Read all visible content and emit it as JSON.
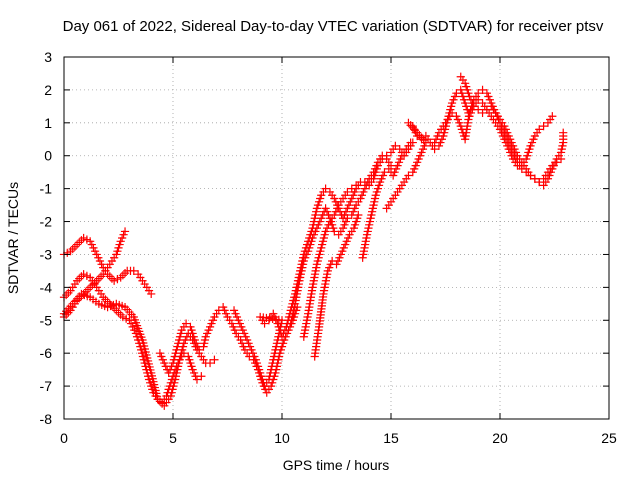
{
  "chart_data": {
    "type": "scatter",
    "title": "Day 061 of 2022, Sidereal Day-to-day VTEC variation (SDTVAR) for receiver ptsv",
    "xlabel": "GPS time / hours",
    "ylabel": "SDTVAR / TECUs",
    "xlim": [
      0,
      25
    ],
    "ylim": [
      -8,
      3
    ],
    "xticks": [
      "0",
      "5",
      "10",
      "15",
      "20",
      "25"
    ],
    "yticks": [
      "-8",
      "-7",
      "-6",
      "-5",
      "-4",
      "-3",
      "-2",
      "-1",
      "0",
      "1",
      "2",
      "3"
    ],
    "grid": true,
    "marker": "plus",
    "color": "#ff0000",
    "series": [
      {
        "points": [
          [
            0.0,
            -3.0
          ],
          [
            0.3,
            -2.9
          ],
          [
            0.6,
            -2.7
          ],
          [
            0.9,
            -2.5
          ],
          [
            1.2,
            -2.6
          ],
          [
            1.5,
            -3.0
          ],
          [
            1.8,
            -3.4
          ],
          [
            2.0,
            -3.6
          ],
          [
            2.3,
            -3.8
          ],
          [
            2.6,
            -3.7
          ],
          [
            2.9,
            -3.5
          ],
          [
            3.2,
            -3.5
          ],
          [
            3.4,
            -3.6
          ],
          [
            3.6,
            -3.8
          ],
          [
            3.8,
            -4.0
          ],
          [
            4.0,
            -4.2
          ],
          [
            0.0,
            -4.3
          ],
          [
            0.3,
            -4.1
          ],
          [
            0.6,
            -3.8
          ],
          [
            0.9,
            -3.6
          ],
          [
            1.2,
            -3.7
          ],
          [
            1.5,
            -4.0
          ],
          [
            1.8,
            -4.3
          ],
          [
            2.1,
            -4.5
          ],
          [
            2.4,
            -4.7
          ],
          [
            2.7,
            -4.9
          ],
          [
            3.0,
            -5.0
          ],
          [
            3.3,
            -5.4
          ],
          [
            3.5,
            -5.8
          ],
          [
            3.7,
            -6.3
          ],
          [
            3.9,
            -6.8
          ],
          [
            4.1,
            -7.2
          ],
          [
            4.3,
            -7.4
          ],
          [
            4.5,
            -7.5
          ],
          [
            4.7,
            -7.3
          ],
          [
            4.9,
            -6.9
          ],
          [
            5.1,
            -6.5
          ],
          [
            5.3,
            -6.2
          ],
          [
            5.5,
            -6.0
          ],
          [
            5.7,
            -6.1
          ],
          [
            5.9,
            -6.5
          ],
          [
            6.1,
            -6.8
          ],
          [
            6.3,
            -6.7
          ],
          [
            0.0,
            -4.9
          ],
          [
            0.3,
            -4.7
          ],
          [
            0.6,
            -4.4
          ],
          [
            0.9,
            -4.2
          ],
          [
            1.2,
            -4.0
          ],
          [
            1.5,
            -3.8
          ],
          [
            1.8,
            -3.6
          ],
          [
            2.1,
            -3.3
          ],
          [
            2.4,
            -3.0
          ],
          [
            2.6,
            -2.6
          ],
          [
            2.8,
            -2.3
          ],
          [
            0.0,
            -4.8
          ],
          [
            0.4,
            -4.5
          ],
          [
            0.8,
            -4.2
          ],
          [
            1.2,
            -4.3
          ],
          [
            1.6,
            -4.5
          ],
          [
            2.0,
            -4.6
          ],
          [
            2.4,
            -4.5
          ],
          [
            2.8,
            -4.6
          ],
          [
            3.2,
            -4.9
          ],
          [
            3.6,
            -5.6
          ],
          [
            4.0,
            -6.6
          ],
          [
            4.3,
            -7.4
          ],
          [
            4.6,
            -7.6
          ],
          [
            4.9,
            -7.3
          ],
          [
            5.1,
            -6.8
          ],
          [
            5.3,
            -6.2
          ],
          [
            5.5,
            -5.7
          ],
          [
            5.7,
            -5.4
          ],
          [
            5.9,
            -5.6
          ],
          [
            6.1,
            -5.9
          ],
          [
            6.3,
            -6.1
          ],
          [
            6.5,
            -6.3
          ],
          [
            6.7,
            -6.3
          ],
          [
            6.9,
            -6.2
          ],
          [
            4.4,
            -6.0
          ],
          [
            4.6,
            -6.3
          ],
          [
            4.8,
            -6.6
          ],
          [
            5.0,
            -6.3
          ],
          [
            5.2,
            -5.8
          ],
          [
            5.4,
            -5.3
          ],
          [
            5.6,
            -5.1
          ],
          [
            5.8,
            -5.2
          ],
          [
            6.0,
            -5.6
          ],
          [
            6.2,
            -5.9
          ],
          [
            6.4,
            -5.8
          ],
          [
            6.5,
            -5.5
          ],
          [
            6.7,
            -5.2
          ],
          [
            6.9,
            -4.9
          ],
          [
            7.1,
            -4.7
          ],
          [
            7.3,
            -4.6
          ],
          [
            7.5,
            -4.9
          ],
          [
            7.7,
            -5.1
          ],
          [
            7.9,
            -5.4
          ],
          [
            8.1,
            -5.6
          ],
          [
            8.3,
            -5.9
          ],
          [
            8.5,
            -6.1
          ],
          [
            8.7,
            -6.2
          ],
          [
            8.9,
            -6.5
          ],
          [
            9.1,
            -6.9
          ],
          [
            9.3,
            -7.2
          ],
          [
            9.5,
            -7.0
          ],
          [
            9.7,
            -6.6
          ],
          [
            9.9,
            -6.0
          ],
          [
            10.1,
            -5.6
          ],
          [
            10.3,
            -5.3
          ],
          [
            10.5,
            -5.0
          ],
          [
            10.7,
            -4.6
          ],
          [
            7.8,
            -4.7
          ],
          [
            8.0,
            -5.0
          ],
          [
            8.2,
            -5.3
          ],
          [
            8.4,
            -5.6
          ],
          [
            8.6,
            -5.9
          ],
          [
            8.8,
            -6.2
          ],
          [
            9.0,
            -6.6
          ],
          [
            9.2,
            -7.0
          ],
          [
            9.4,
            -6.8
          ],
          [
            9.6,
            -6.2
          ],
          [
            9.8,
            -5.6
          ],
          [
            10.0,
            -5.0
          ],
          [
            9.0,
            -4.9
          ],
          [
            9.2,
            -5.1
          ],
          [
            9.4,
            -5.0
          ],
          [
            9.6,
            -4.8
          ],
          [
            9.8,
            -5.1
          ],
          [
            10.0,
            -5.5
          ],
          [
            10.2,
            -5.2
          ],
          [
            10.4,
            -4.7
          ],
          [
            10.6,
            -4.2
          ],
          [
            10.8,
            -3.6
          ],
          [
            11.0,
            -3.0
          ],
          [
            11.2,
            -2.6
          ],
          [
            11.4,
            -2.2
          ],
          [
            11.6,
            -1.6
          ],
          [
            11.8,
            -1.2
          ],
          [
            12.0,
            -1.0
          ],
          [
            12.2,
            -1.1
          ],
          [
            12.4,
            -1.3
          ],
          [
            12.6,
            -1.6
          ],
          [
            12.8,
            -1.9
          ],
          [
            13.0,
            -1.6
          ],
          [
            13.2,
            -1.3
          ],
          [
            13.4,
            -1.0
          ],
          [
            13.6,
            -0.8
          ],
          [
            13.8,
            -0.8
          ],
          [
            14.0,
            -0.9
          ],
          [
            14.2,
            -0.7
          ],
          [
            14.4,
            -0.3
          ],
          [
            14.6,
            -0.1
          ],
          [
            14.8,
            0.0
          ],
          [
            15.0,
            0.1
          ],
          [
            15.2,
            0.3
          ],
          [
            15.4,
            0.2
          ],
          [
            15.6,
            0.0
          ],
          [
            15.8,
            0.2
          ],
          [
            16.0,
            0.4
          ],
          [
            10.4,
            -5.1
          ],
          [
            10.6,
            -4.5
          ],
          [
            10.8,
            -3.8
          ],
          [
            11.0,
            -3.2
          ],
          [
            11.2,
            -2.9
          ],
          [
            11.4,
            -2.5
          ],
          [
            11.6,
            -2.2
          ],
          [
            11.8,
            -1.9
          ],
          [
            12.0,
            -1.6
          ],
          [
            12.2,
            -1.9
          ],
          [
            12.4,
            -2.3
          ],
          [
            12.6,
            -2.4
          ],
          [
            12.8,
            -2.2
          ],
          [
            13.0,
            -1.9
          ],
          [
            13.2,
            -1.8
          ],
          [
            13.4,
            -1.5
          ],
          [
            13.6,
            -1.3
          ],
          [
            13.8,
            -1.0
          ],
          [
            14.0,
            -0.7
          ],
          [
            14.2,
            -0.5
          ],
          [
            14.4,
            -0.2
          ],
          [
            14.6,
            0.0
          ],
          [
            14.8,
            -0.1
          ],
          [
            15.0,
            -0.3
          ],
          [
            11.0,
            -5.5
          ],
          [
            11.2,
            -4.8
          ],
          [
            11.4,
            -4.0
          ],
          [
            11.6,
            -3.3
          ],
          [
            11.8,
            -2.8
          ],
          [
            12.0,
            -2.3
          ],
          [
            12.2,
            -2.0
          ],
          [
            12.4,
            -1.8
          ],
          [
            12.6,
            -1.5
          ],
          [
            12.8,
            -1.3
          ],
          [
            13.0,
            -1.1
          ],
          [
            13.2,
            -1.0
          ],
          [
            13.4,
            -0.9
          ],
          [
            11.5,
            -6.1
          ],
          [
            11.7,
            -5.2
          ],
          [
            11.9,
            -4.2
          ],
          [
            12.1,
            -3.5
          ],
          [
            12.3,
            -3.2
          ],
          [
            12.5,
            -3.3
          ],
          [
            12.7,
            -3.0
          ],
          [
            12.9,
            -2.7
          ],
          [
            13.1,
            -2.4
          ],
          [
            13.3,
            -2.2
          ],
          [
            13.5,
            -1.8
          ],
          [
            13.7,
            -3.1
          ],
          [
            13.9,
            -2.4
          ],
          [
            14.1,
            -1.8
          ],
          [
            14.3,
            -1.2
          ],
          [
            14.5,
            -0.8
          ],
          [
            14.7,
            -0.5
          ],
          [
            14.9,
            -0.4
          ],
          [
            15.1,
            -0.6
          ],
          [
            15.3,
            -0.3
          ],
          [
            15.5,
            0.0
          ],
          [
            15.7,
            0.2
          ],
          [
            15.9,
            0.4
          ],
          [
            14.8,
            -1.6
          ],
          [
            15.0,
            -1.4
          ],
          [
            15.2,
            -1.2
          ],
          [
            15.4,
            -1.0
          ],
          [
            15.6,
            -0.8
          ],
          [
            15.8,
            -0.6
          ],
          [
            16.0,
            -0.5
          ],
          [
            16.2,
            -0.2
          ],
          [
            16.4,
            0.1
          ],
          [
            16.6,
            0.4
          ],
          [
            15.8,
            1.0
          ],
          [
            16.0,
            0.9
          ],
          [
            16.2,
            0.6
          ],
          [
            16.4,
            0.5
          ],
          [
            16.6,
            0.6
          ],
          [
            16.8,
            0.4
          ],
          [
            17.0,
            0.2
          ],
          [
            17.2,
            0.3
          ],
          [
            17.4,
            0.6
          ],
          [
            17.6,
            1.1
          ],
          [
            17.8,
            1.6
          ],
          [
            18.0,
            1.9
          ],
          [
            18.2,
            2.0
          ],
          [
            18.4,
            1.6
          ],
          [
            18.6,
            1.2
          ],
          [
            18.8,
            1.5
          ],
          [
            19.0,
            1.7
          ],
          [
            19.2,
            1.6
          ],
          [
            19.4,
            1.4
          ],
          [
            19.6,
            1.2
          ],
          [
            19.8,
            1.0
          ],
          [
            20.0,
            0.8
          ],
          [
            20.2,
            0.5
          ],
          [
            20.4,
            0.2
          ],
          [
            20.6,
            -0.1
          ],
          [
            20.8,
            -0.3
          ],
          [
            21.0,
            -0.3
          ],
          [
            21.2,
            -0.1
          ],
          [
            21.4,
            0.3
          ],
          [
            21.6,
            0.6
          ],
          [
            21.8,
            0.8
          ],
          [
            22.0,
            0.9
          ],
          [
            22.2,
            1.0
          ],
          [
            22.4,
            1.2
          ],
          [
            17.0,
            0.4
          ],
          [
            17.2,
            0.7
          ],
          [
            17.4,
            0.9
          ],
          [
            17.6,
            1.1
          ],
          [
            17.8,
            1.3
          ],
          [
            18.0,
            1.2
          ],
          [
            18.2,
            0.9
          ],
          [
            18.4,
            0.5
          ],
          [
            18.6,
            1.3
          ],
          [
            18.8,
            1.7
          ],
          [
            19.0,
            1.9
          ],
          [
            19.2,
            2.0
          ],
          [
            19.4,
            1.9
          ],
          [
            19.6,
            1.6
          ],
          [
            19.8,
            1.3
          ],
          [
            20.0,
            1.1
          ],
          [
            20.2,
            0.9
          ],
          [
            20.4,
            0.6
          ],
          [
            20.6,
            0.3
          ],
          [
            20.8,
            0.0
          ],
          [
            21.0,
            -0.2
          ],
          [
            21.2,
            -0.4
          ],
          [
            21.4,
            -0.6
          ],
          [
            21.6,
            -0.7
          ],
          [
            21.8,
            -0.8
          ],
          [
            22.0,
            -0.7
          ],
          [
            22.2,
            -0.5
          ],
          [
            22.4,
            -0.3
          ],
          [
            22.6,
            -0.2
          ],
          [
            22.8,
            -0.1
          ],
          [
            18.2,
            2.4
          ],
          [
            18.4,
            2.2
          ],
          [
            18.6,
            1.8
          ],
          [
            18.8,
            1.5
          ],
          [
            19.0,
            1.4
          ],
          [
            19.2,
            1.3
          ],
          [
            19.4,
            1.4
          ],
          [
            19.6,
            1.5
          ],
          [
            19.8,
            1.3
          ],
          [
            20.0,
            1.0
          ],
          [
            20.2,
            0.7
          ],
          [
            20.4,
            0.4
          ],
          [
            20.6,
            0.1
          ],
          [
            20.8,
            -0.2
          ],
          [
            21.0,
            -0.4
          ],
          [
            21.2,
            -0.5
          ],
          [
            21.4,
            -0.6
          ],
          [
            21.6,
            -0.7
          ],
          [
            21.8,
            -0.8
          ],
          [
            22.0,
            -0.9
          ],
          [
            22.2,
            -0.7
          ],
          [
            22.4,
            -0.4
          ],
          [
            22.6,
            -0.1
          ],
          [
            22.8,
            0.1
          ],
          [
            22.9,
            0.4
          ],
          [
            22.9,
            0.7
          ]
        ]
      }
    ]
  }
}
